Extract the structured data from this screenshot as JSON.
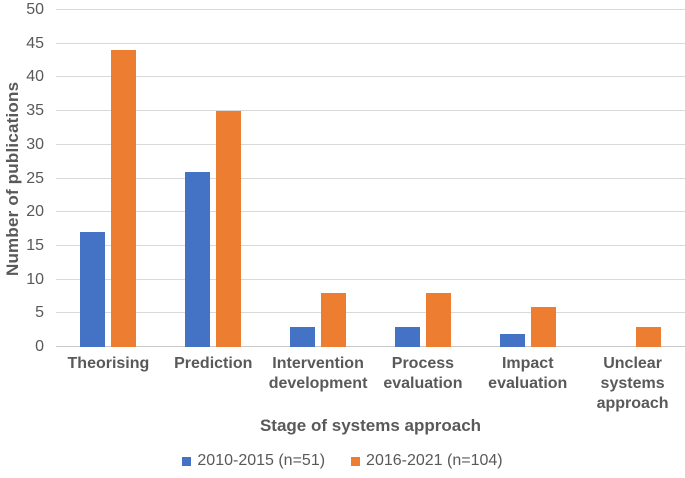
{
  "chart_data": {
    "type": "bar",
    "title": "",
    "xlabel": "Stage of systems approach",
    "ylabel": "Number of publications",
    "categories": [
      "Theorising",
      "Prediction",
      "Intervention development",
      "Process evaluation",
      "Impact evaluation",
      "Unclear systems approach"
    ],
    "series": [
      {
        "name": "2010-2015 (n=51)",
        "color": "#4472C4",
        "values": [
          17,
          26,
          3,
          3,
          2,
          0
        ]
      },
      {
        "name": "2016-2021 (n=104)",
        "color": "#ED7D31",
        "values": [
          44,
          35,
          8,
          8,
          6,
          3
        ]
      }
    ],
    "ylim": [
      0,
      50
    ],
    "yticks": [
      0,
      5,
      10,
      15,
      20,
      25,
      30,
      35,
      40,
      45,
      50
    ],
    "grid": true,
    "legend_position": "bottom"
  },
  "colors": {
    "gridline": "#d9d9d9",
    "axis_line": "#c9c9c9",
    "text": "#595959",
    "series1": "#4472C4",
    "series2": "#ED7D31"
  }
}
